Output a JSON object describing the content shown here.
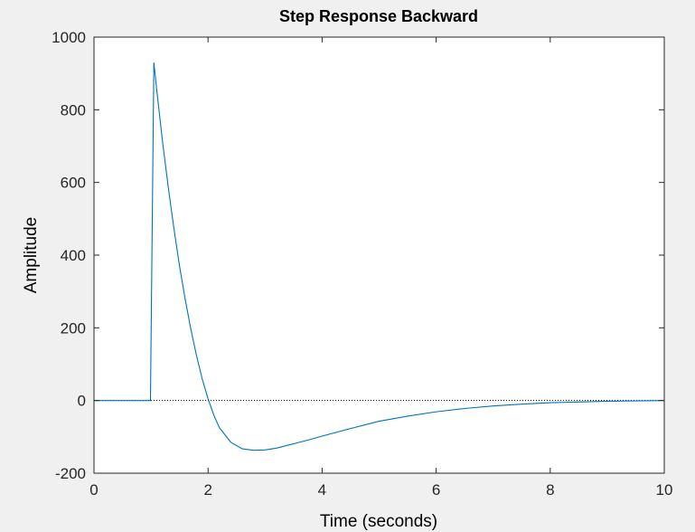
{
  "chart_data": {
    "type": "line",
    "title": "Step Response Backward",
    "xlabel": "Time (seconds)",
    "ylabel": "Amplitude",
    "xlim": [
      0,
      10
    ],
    "ylim": [
      -200,
      1000
    ],
    "xticks": [
      0,
      2,
      4,
      6,
      8,
      10
    ],
    "yticks": [
      -200,
      0,
      200,
      400,
      600,
      800,
      1000
    ],
    "xtick_labels": [
      "0",
      "2",
      "4",
      "6",
      "8",
      "10"
    ],
    "ytick_labels": [
      "-200",
      "0",
      "200",
      "400",
      "600",
      "800",
      "1000"
    ],
    "grid": false,
    "reference_line": {
      "y": 0,
      "style": "dotted"
    },
    "series": [
      {
        "color": "#0072bd",
        "x": [
          0,
          0.95,
          0.99,
          1.05,
          1.1,
          1.2,
          1.3,
          1.4,
          1.5,
          1.6,
          1.7,
          1.8,
          1.9,
          2.0,
          2.1,
          2.2,
          2.4,
          2.6,
          2.8,
          3.0,
          3.2,
          3.4,
          3.6,
          3.8,
          4.0,
          4.5,
          5.0,
          5.5,
          6.0,
          6.5,
          7.0,
          7.5,
          8.0,
          8.5,
          9.0,
          9.5,
          10.0
        ],
        "y": [
          0,
          0,
          0,
          930,
          855,
          715,
          590,
          475,
          370,
          278,
          195,
          122,
          58,
          5,
          -40,
          -75,
          -115,
          -133,
          -137,
          -136,
          -131,
          -123,
          -115,
          -107,
          -98,
          -77,
          -57,
          -43,
          -31,
          -22,
          -15,
          -10,
          -6,
          -4,
          -2,
          -1,
          0
        ]
      }
    ]
  }
}
